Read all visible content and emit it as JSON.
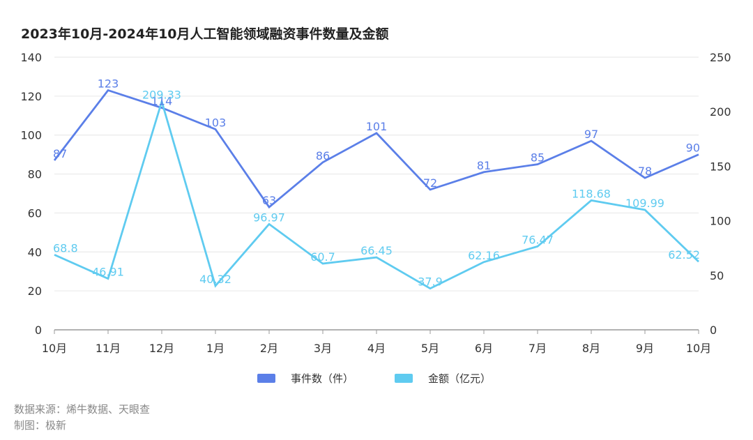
{
  "colors": {
    "events": "#5b7fe8",
    "amount": "#5fcbf0",
    "grid": "#e6e6e6",
    "axis": "#999999",
    "label_events": "#5b7fe8",
    "label_amount": "#5fcbf0"
  },
  "chart_data": {
    "type": "line",
    "title": "2023年10月-2024年10月人工智能领域融资事件数量及金额",
    "categories": [
      "10月",
      "11月",
      "12月",
      "1月",
      "2月",
      "3月",
      "4月",
      "5月",
      "6月",
      "7月",
      "8月",
      "9月",
      "10月"
    ],
    "y_left": {
      "range": [
        0,
        140
      ],
      "ticks": [
        "0",
        "20",
        "40",
        "60",
        "80",
        "100",
        "120",
        "140"
      ]
    },
    "y_right": {
      "range": [
        0,
        250
      ],
      "ticks": [
        "0",
        "50",
        "100",
        "150",
        "200",
        "250"
      ]
    },
    "series": [
      {
        "name": "事件数（件）",
        "axis": "left",
        "values": [
          87,
          123,
          114,
          103,
          63,
          86,
          101,
          72,
          81,
          85,
          97,
          78,
          90
        ],
        "labels": [
          "87",
          "123",
          "114",
          "103",
          "63",
          "86",
          "101",
          "72",
          "81",
          "85",
          "97",
          "78",
          "90"
        ]
      },
      {
        "name": "金额（亿元）",
        "axis": "right",
        "values": [
          68.8,
          46.91,
          209.33,
          40.32,
          96.97,
          60.7,
          66.45,
          37.9,
          62.16,
          76.47,
          118.68,
          109.99,
          62.52
        ],
        "labels": [
          "68.8",
          "46.91",
          "209.33",
          "40.32",
          "96.97",
          "60.7",
          "66.45",
          "37.9",
          "62.16",
          "76.47",
          "118.68",
          "109.99",
          "62.52"
        ]
      }
    ],
    "legend": [
      "事件数（件）",
      "金额（亿元）"
    ],
    "grid": true
  },
  "footer": {
    "source": "数据来源：烯牛数据、天眼查",
    "maker": "制图：极新"
  }
}
